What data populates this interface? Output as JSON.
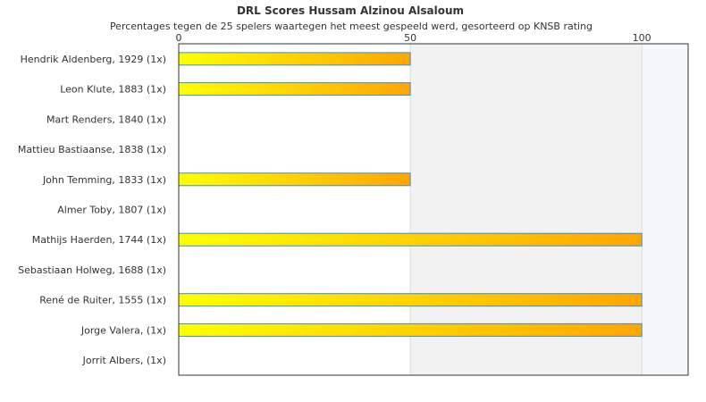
{
  "chart_data": {
    "type": "bar",
    "orientation": "horizontal",
    "title": "DRL Scores Hussam Alzinou Alsaloum",
    "subtitle": "Percentages tegen de 25 spelers waartegen het meest gespeeld werd, gesorteerd op KNSB rating",
    "xlim": [
      0,
      110
    ],
    "xticks": [
      0,
      50,
      100
    ],
    "categories": [
      "Hendrik Aldenberg, 1929 (1x)",
      "Leon Klute, 1883 (1x)",
      "Mart Renders, 1840 (1x)",
      "Mattieu Bastiaanse, 1838 (1x)",
      "John Temming, 1833 (1x)",
      "Almer Toby, 1807 (1x)",
      "Mathijs Haerden, 1744 (1x)",
      "Sebastiaan Holweg, 1688 (1x)",
      "René de Ruiter, 1555 (1x)",
      "Jorge Valera,  (1x)",
      "Jorrit Albers,  (1x)"
    ],
    "values": [
      50,
      50,
      0,
      0,
      50,
      0,
      100,
      0,
      100,
      100,
      0
    ],
    "bar_gradient": [
      "#ffff00",
      "#ffa500"
    ],
    "bar_border_color": "#3a8fd8",
    "band_colors": [
      "#ffffff",
      "#f2f2f2",
      "#f5f7fb"
    ],
    "grid": true,
    "legend": "none"
  }
}
